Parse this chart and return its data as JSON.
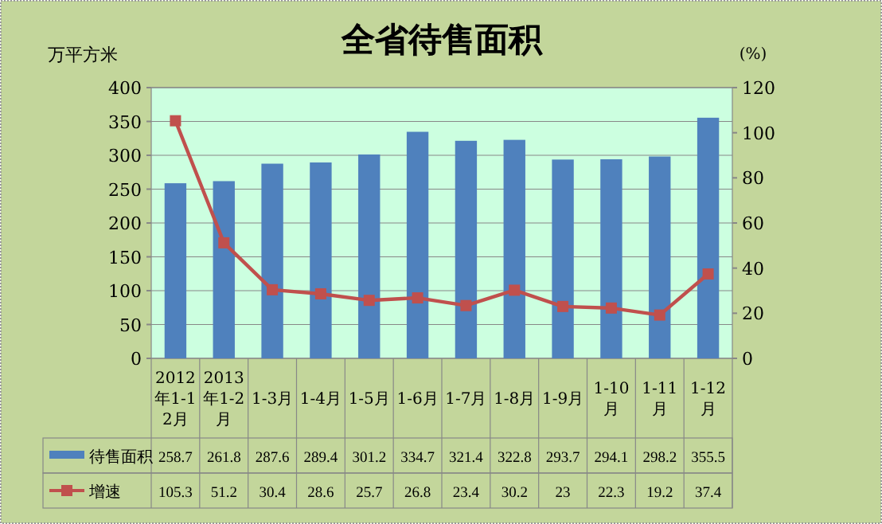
{
  "chart_data": {
    "type": "bar",
    "title": "全省待售面积",
    "ylabel": "万平方米",
    "y2label": "(%)",
    "categories": [
      "2012年1-12月",
      "2013年1-2月",
      "1-3月",
      "1-4月",
      "1-5月",
      "1-6月",
      "1-7月",
      "1-8月",
      "1-9月",
      "1-10月",
      "1-11月",
      "1-12月"
    ],
    "series": [
      {
        "name": "待售面积",
        "color": "#4f81bd",
        "values": [
          258.7,
          261.8,
          287.6,
          289.4,
          301.2,
          334.7,
          321.4,
          322.8,
          293.7,
          294.1,
          298.2,
          355.5
        ]
      },
      {
        "name": "增速",
        "type": "line",
        "axis": "y2",
        "color": "#c0504d",
        "values": [
          105.3,
          51.2,
          30.4,
          28.6,
          25.7,
          26.8,
          23.4,
          30.2,
          23,
          22.3,
          19.2,
          37.4
        ]
      }
    ],
    "ylim": [
      0,
      400
    ],
    "yticks": [
      0,
      50,
      100,
      150,
      200,
      250,
      300,
      350,
      400
    ],
    "y2lim": [
      0,
      120
    ],
    "y2ticks": [
      0,
      20,
      40,
      60,
      80,
      100,
      120
    ],
    "grid": "y",
    "marker": "square",
    "line_style": "solid",
    "data_labels": true,
    "legend": "bottom left"
  }
}
